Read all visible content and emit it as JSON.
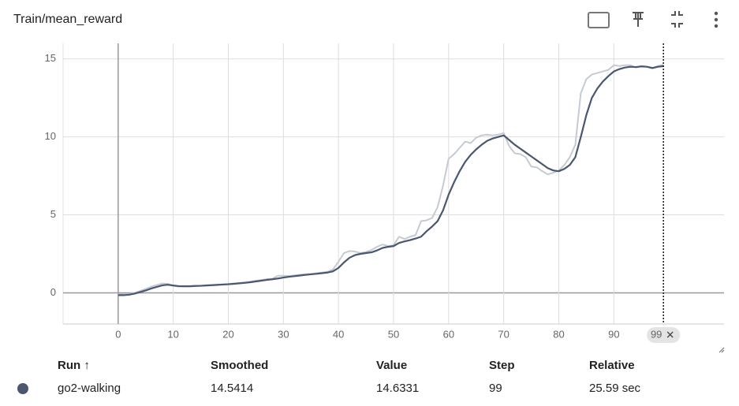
{
  "chart_data": {
    "type": "line",
    "title": "Train/mean_reward",
    "x": [
      0,
      1,
      2,
      3,
      4,
      5,
      6,
      7,
      8,
      9,
      10,
      11,
      12,
      13,
      14,
      15,
      16,
      17,
      18,
      19,
      20,
      21,
      22,
      23,
      24,
      25,
      26,
      27,
      28,
      29,
      30,
      31,
      32,
      33,
      34,
      35,
      36,
      37,
      38,
      39,
      40,
      41,
      42,
      43,
      44,
      45,
      46,
      47,
      48,
      49,
      50,
      51,
      52,
      53,
      54,
      55,
      56,
      57,
      58,
      59,
      60,
      61,
      62,
      63,
      64,
      65,
      66,
      67,
      68,
      69,
      70,
      71,
      72,
      73,
      74,
      75,
      76,
      77,
      78,
      79,
      80,
      81,
      82,
      83,
      84,
      85,
      86,
      87,
      88,
      89,
      90,
      91,
      92,
      93,
      94,
      95,
      96,
      97,
      98,
      99
    ],
    "series": [
      {
        "name": "go2-walking",
        "color": "#4b5670",
        "raw_color": "#c5cad3",
        "values": [
          -0.15,
          -0.15,
          -0.12,
          -0.05,
          0.05,
          0.15,
          0.28,
          0.38,
          0.48,
          0.52,
          0.47,
          0.43,
          0.42,
          0.42,
          0.44,
          0.45,
          0.47,
          0.49,
          0.51,
          0.53,
          0.55,
          0.58,
          0.61,
          0.64,
          0.68,
          0.73,
          0.78,
          0.83,
          0.87,
          0.92,
          0.98,
          1.03,
          1.07,
          1.11,
          1.15,
          1.19,
          1.22,
          1.26,
          1.3,
          1.38,
          1.6,
          1.95,
          2.25,
          2.42,
          2.5,
          2.55,
          2.6,
          2.72,
          2.88,
          2.95,
          3.0,
          3.2,
          3.3,
          3.38,
          3.48,
          3.6,
          3.95,
          4.25,
          4.6,
          5.3,
          6.3,
          7.1,
          7.8,
          8.4,
          8.85,
          9.2,
          9.5,
          9.75,
          9.9,
          10.0,
          10.1,
          9.8,
          9.5,
          9.25,
          9.0,
          8.75,
          8.5,
          8.25,
          8.0,
          7.85,
          7.8,
          7.95,
          8.2,
          8.7,
          10.0,
          11.4,
          12.5,
          13.1,
          13.55,
          13.9,
          14.2,
          14.35,
          14.45,
          14.5,
          14.48,
          14.52,
          14.5,
          14.42,
          14.5,
          14.5414
        ],
        "raw_values": [
          -0.1,
          -0.1,
          -0.08,
          0.0,
          0.12,
          0.25,
          0.4,
          0.5,
          0.6,
          0.58,
          0.45,
          0.4,
          0.42,
          0.43,
          0.46,
          0.46,
          0.49,
          0.5,
          0.53,
          0.55,
          0.57,
          0.6,
          0.63,
          0.68,
          0.72,
          0.78,
          0.82,
          0.88,
          0.9,
          1.1,
          1.1,
          1.08,
          1.12,
          1.16,
          1.2,
          1.22,
          1.26,
          1.3,
          1.35,
          1.5,
          2.0,
          2.55,
          2.68,
          2.65,
          2.55,
          2.62,
          2.75,
          2.95,
          3.1,
          3.0,
          3.05,
          3.6,
          3.45,
          3.6,
          3.7,
          4.6,
          4.65,
          4.8,
          5.5,
          6.9,
          8.6,
          8.9,
          9.3,
          9.7,
          9.6,
          9.95,
          10.1,
          10.15,
          10.1,
          10.15,
          10.25,
          9.4,
          8.95,
          8.9,
          8.7,
          8.1,
          8.05,
          7.8,
          7.6,
          7.7,
          7.85,
          8.2,
          8.7,
          9.5,
          12.8,
          13.7,
          14.0,
          14.1,
          14.2,
          14.3,
          14.6,
          14.55,
          14.6,
          14.6,
          14.45,
          14.55,
          14.5,
          14.4,
          14.55,
          14.6331
        ]
      }
    ],
    "xlim": [
      -10,
      110
    ],
    "ylim": [
      -2,
      16
    ],
    "xticks": [
      0,
      10,
      20,
      30,
      40,
      50,
      60,
      70,
      80,
      90
    ],
    "yticks": [
      0,
      5,
      10,
      15
    ],
    "grid": true,
    "hover_step": 99
  },
  "table": {
    "header": [
      "Run ↑",
      "Smoothed",
      "Value",
      "Step",
      "Relative"
    ],
    "rows": [
      [
        "go2-walking",
        "14.5414",
        "14.6331",
        "99",
        "25.59 sec"
      ]
    ]
  }
}
